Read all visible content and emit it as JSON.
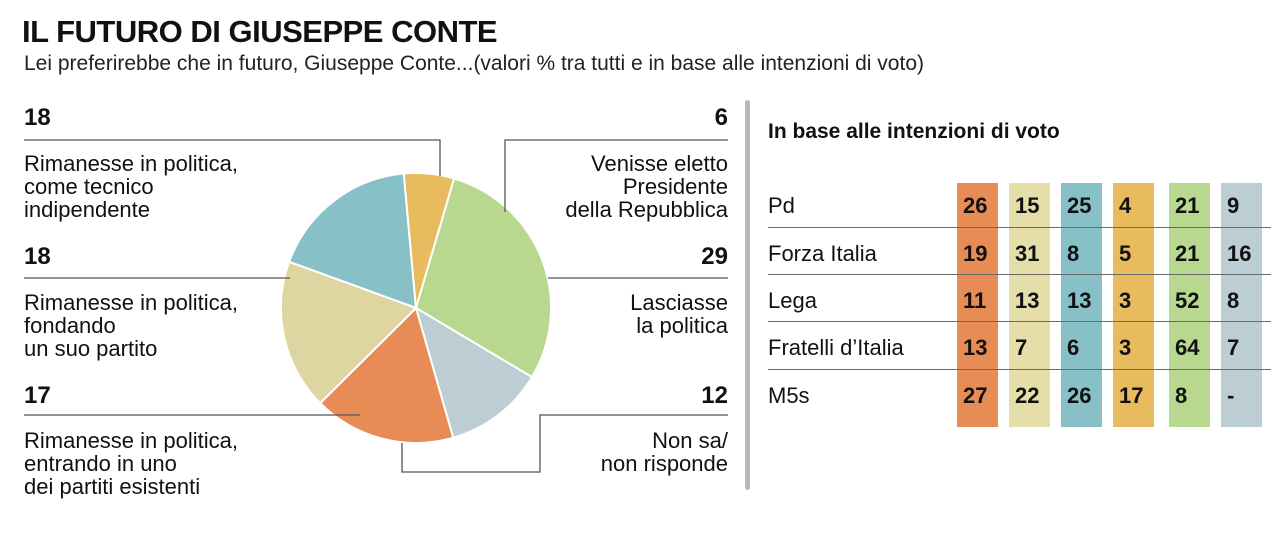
{
  "title": "IL FUTURO DI GIUSEPPE CONTE",
  "subtitle": "Lei preferirebbe che in futuro, Giuseppe Conte...(valori % tra tutti e in base alle intenzioni di voto)",
  "chart_data": [
    {
      "type": "pie",
      "slices": [
        {
          "label": "Rimanesse in politica,\ncome tecnico\nindipendente",
          "value": 18,
          "color": "#88c0c8"
        },
        {
          "label": "Venisse eletto\nPresidente\ndella Repubblica",
          "value": 6,
          "color": "#e8bb5e"
        },
        {
          "label": "Lasciasse\nla politica",
          "value": 29,
          "color": "#b8d88f"
        },
        {
          "label": "Non sa/\nnon risponde",
          "value": 12,
          "color": "#bdcdd4"
        },
        {
          "label": "Rimanesse in politica,\nentrando in uno\ndei partiti esistenti",
          "value": 17,
          "color": "#e88c56"
        },
        {
          "label": "Rimanesse in politica,\nfondando\nun suo partito",
          "value": 18,
          "color": "#dfd5a0"
        }
      ]
    },
    {
      "type": "table",
      "title": "In base alle intenzioni di voto",
      "column_colors": [
        "#e88c56",
        "#e6dea8",
        "#88c0c8",
        "#e8bb5e",
        "#b8d88f",
        "#bdcdd4"
      ],
      "rows": [
        {
          "name": "Pd",
          "values": [
            "26",
            "15",
            "25",
            "4",
            "21",
            "9"
          ]
        },
        {
          "name": "Forza Italia",
          "values": [
            "19",
            "31",
            "8",
            "5",
            "21",
            "16"
          ]
        },
        {
          "name": "Lega",
          "values": [
            "11",
            "13",
            "13",
            "3",
            "52",
            "8"
          ]
        },
        {
          "name": "Fratelli d’Italia",
          "values": [
            "13",
            "7",
            "6",
            "3",
            "64",
            "7"
          ]
        },
        {
          "name": "M5s",
          "values": [
            "27",
            "22",
            "26",
            "17",
            "8",
            "-"
          ]
        }
      ]
    }
  ]
}
